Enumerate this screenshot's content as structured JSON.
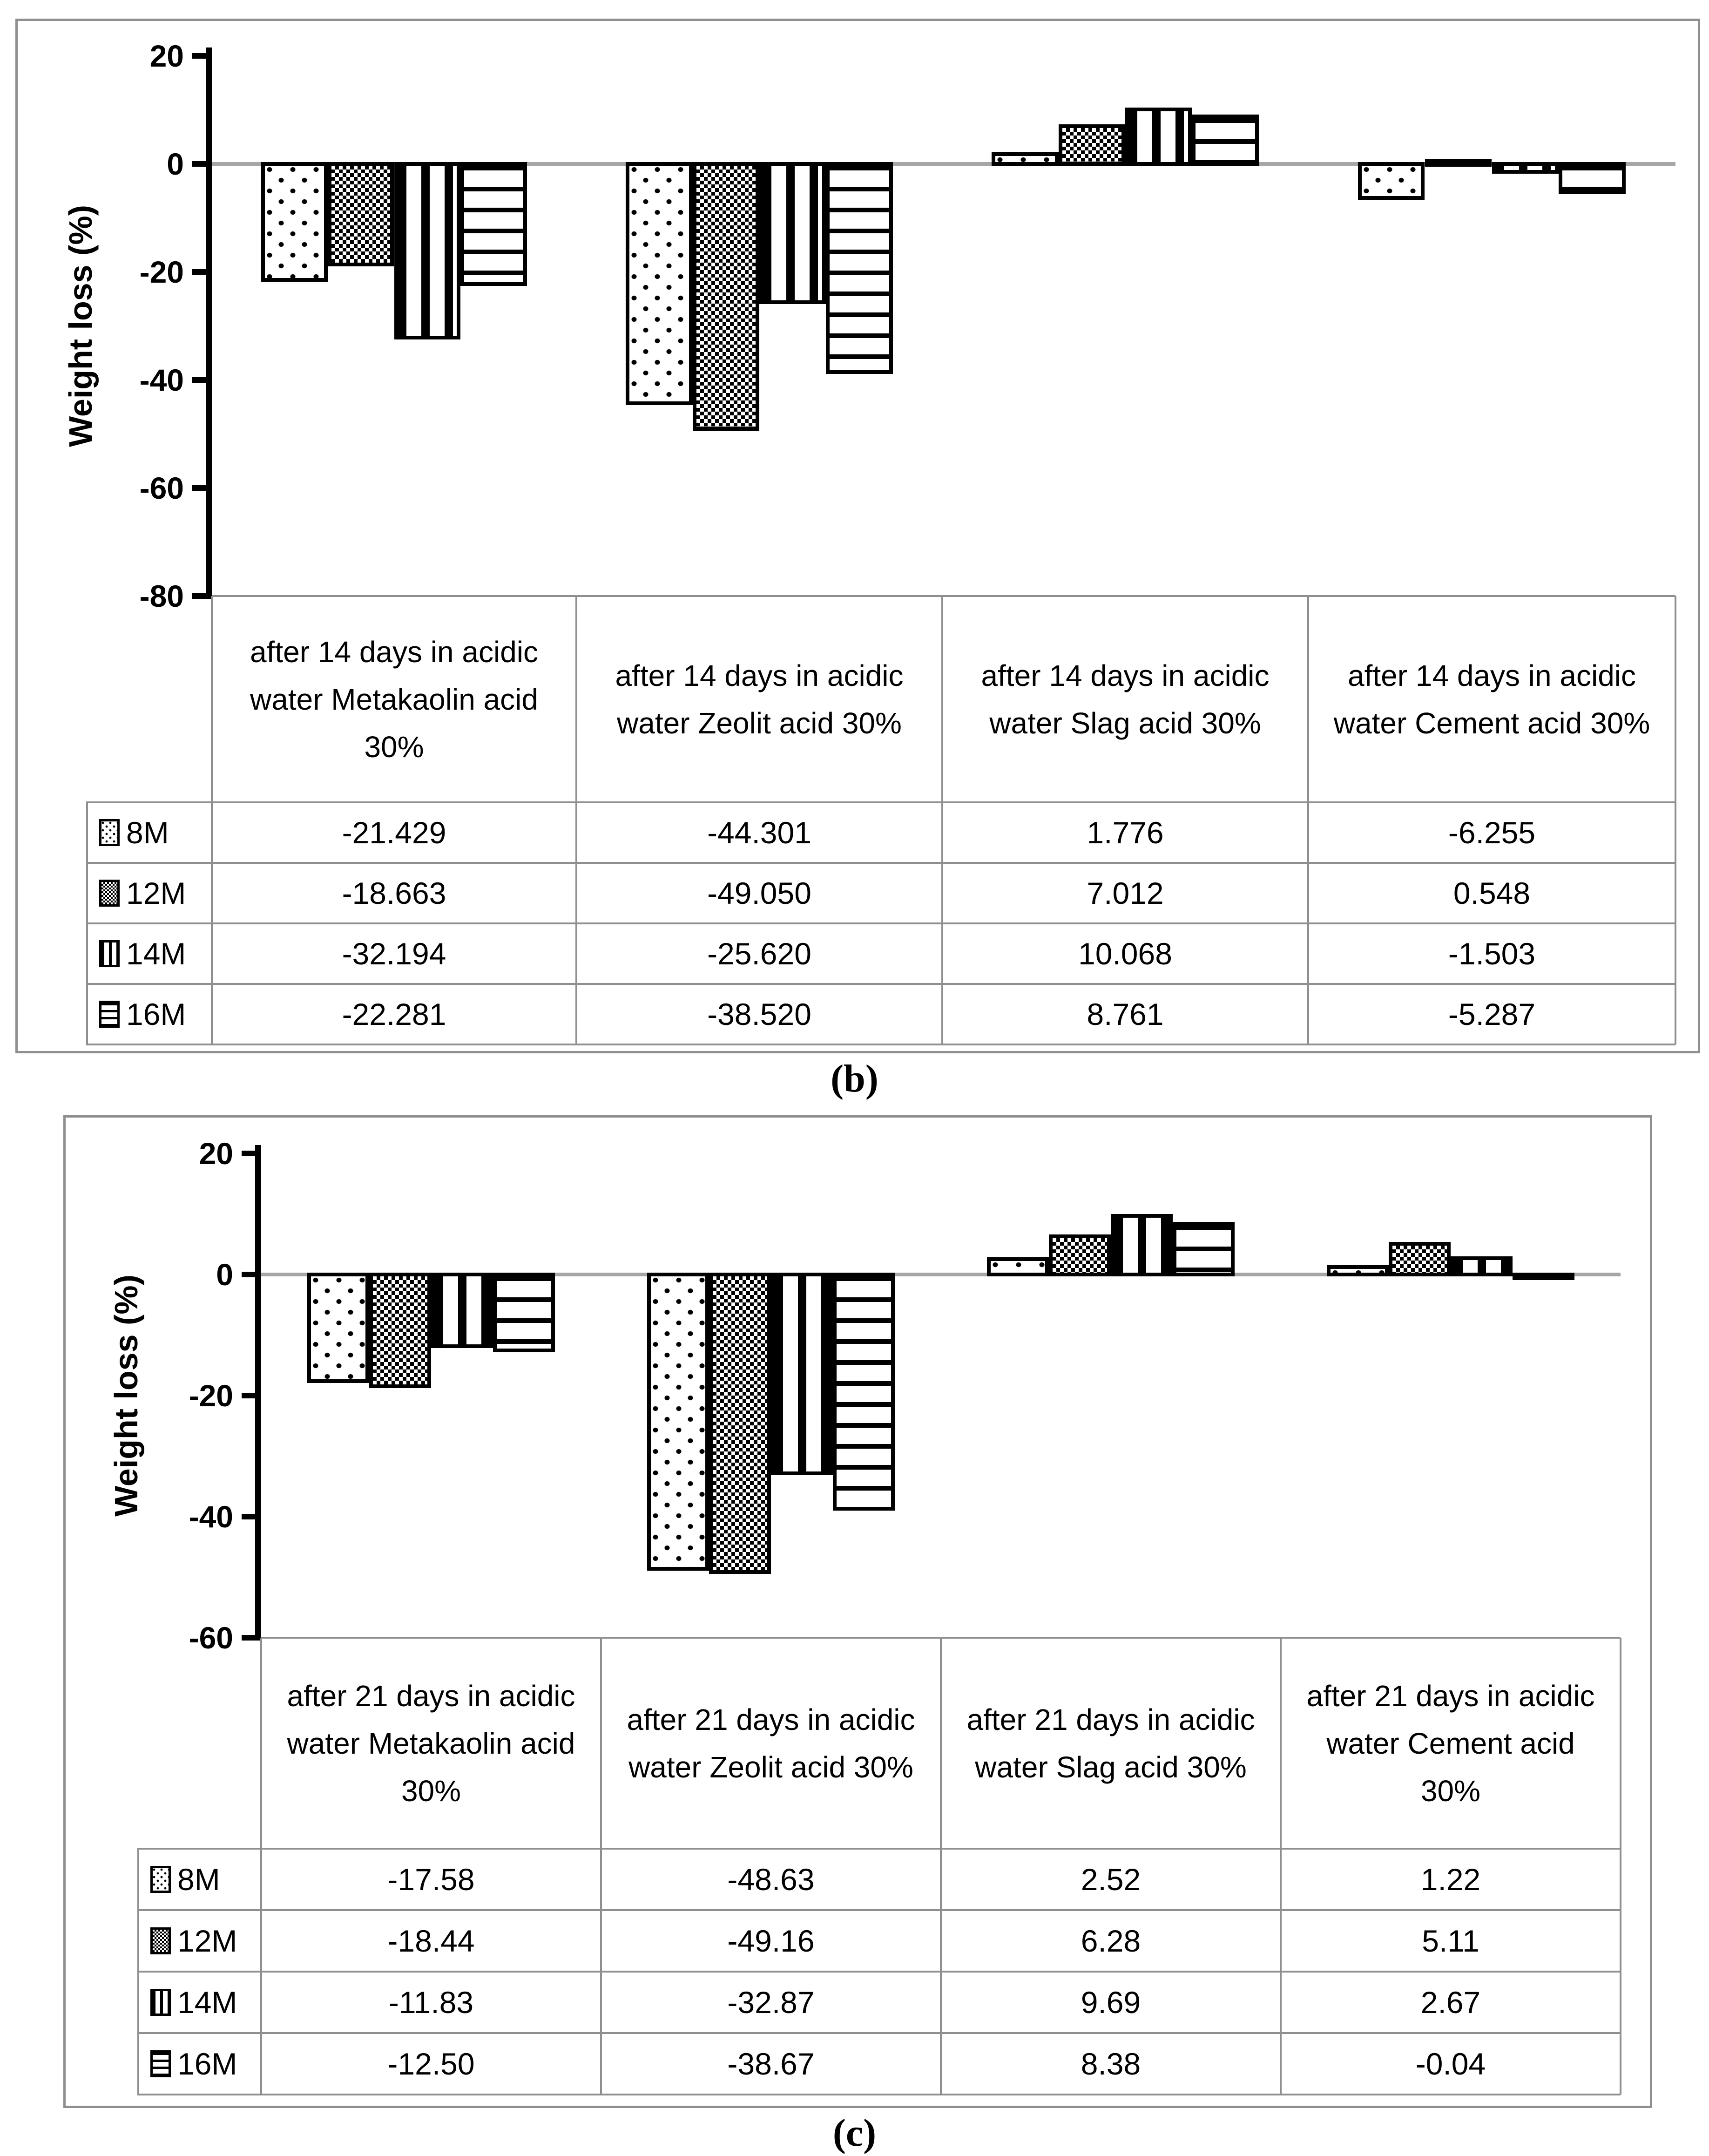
{
  "colors": {
    "background": "#ffffff",
    "panel_border": "#8f8f8f",
    "table_grid": "#8f8f8f",
    "zero_line": "#a6a6a6",
    "bar_outline": "#000000",
    "text": "#000000"
  },
  "chart_data": [
    {
      "id": "b",
      "panel_label": "(b)",
      "type": "bar",
      "title": "",
      "xlabel": "",
      "ylabel": "Weight loss (%)",
      "ylim": [
        -80,
        20
      ],
      "y_ticks": [
        20,
        0,
        -20,
        -40,
        -60,
        -80
      ],
      "y_tick_labels": [
        "20",
        "0",
        "-20",
        "-40",
        "-60",
        "-80"
      ],
      "grid": "zero-line-only",
      "legend_position": "data-table-left",
      "categories": [
        "after 14 days in acidic water Metakaolin acid 30%",
        "after 14 days in acidic water Zeolit acid 30%",
        "after 14 days in acidic water Slag acid 30%",
        "after 14 days in acidic water Cement acid 30%"
      ],
      "series": [
        {
          "name": "8M",
          "pattern": "dots",
          "values": [
            -21.429,
            -44.301,
            1.776,
            -6.255
          ],
          "display": [
            "-21.429",
            "-44.301",
            "1.776",
            "-6.255"
          ]
        },
        {
          "name": "12M",
          "pattern": "checker",
          "values": [
            -18.663,
            -49.05,
            7.012,
            0.548
          ],
          "display": [
            "-18.663",
            "-49.050",
            "7.012",
            "0.548"
          ]
        },
        {
          "name": "14M",
          "pattern": "vstripes",
          "values": [
            -32.194,
            -25.62,
            10.068,
            -1.503
          ],
          "display": [
            "-32.194",
            "-25.620",
            "10.068",
            "-1.503"
          ]
        },
        {
          "name": "16M",
          "pattern": "hstripes",
          "values": [
            -22.281,
            -38.52,
            8.761,
            -5.287
          ],
          "display": [
            "-22.281",
            "-38.520",
            "8.761",
            "-5.287"
          ]
        }
      ]
    },
    {
      "id": "c",
      "panel_label": "(c)",
      "type": "bar",
      "title": "",
      "xlabel": "",
      "ylabel": "Weight loss (%)",
      "ylim": [
        -60,
        20
      ],
      "y_ticks": [
        20,
        0,
        -20,
        -40,
        -60
      ],
      "y_tick_labels": [
        "20",
        "0",
        "-20",
        "-40",
        "-60"
      ],
      "grid": "zero-line-only",
      "legend_position": "data-table-left",
      "categories": [
        "after 21 days in acidic water Metakaolin acid 30%",
        "after 21 days in acidic water Zeolit acid 30%",
        "after 21 days in acidic water Slag acid 30%",
        "after 21 days in acidic water Cement acid 30%"
      ],
      "series": [
        {
          "name": "8M",
          "pattern": "dots",
          "values": [
            -17.58,
            -48.63,
            2.52,
            1.22
          ],
          "display": [
            "-17.58",
            "-48.63",
            "2.52",
            "1.22"
          ]
        },
        {
          "name": "12M",
          "pattern": "checker",
          "values": [
            -18.44,
            -49.16,
            6.28,
            5.11
          ],
          "display": [
            "-18.44",
            "-49.16",
            "6.28",
            "5.11"
          ]
        },
        {
          "name": "14M",
          "pattern": "vstripes",
          "values": [
            -11.83,
            -32.87,
            9.69,
            2.67
          ],
          "display": [
            "-11.83",
            "-32.87",
            "9.69",
            "2.67"
          ]
        },
        {
          "name": "16M",
          "pattern": "hstripes",
          "values": [
            -12.5,
            -38.67,
            8.38,
            -0.04
          ],
          "display": [
            "-12.50",
            "-38.67",
            "8.38",
            "-0.04"
          ]
        }
      ]
    }
  ]
}
